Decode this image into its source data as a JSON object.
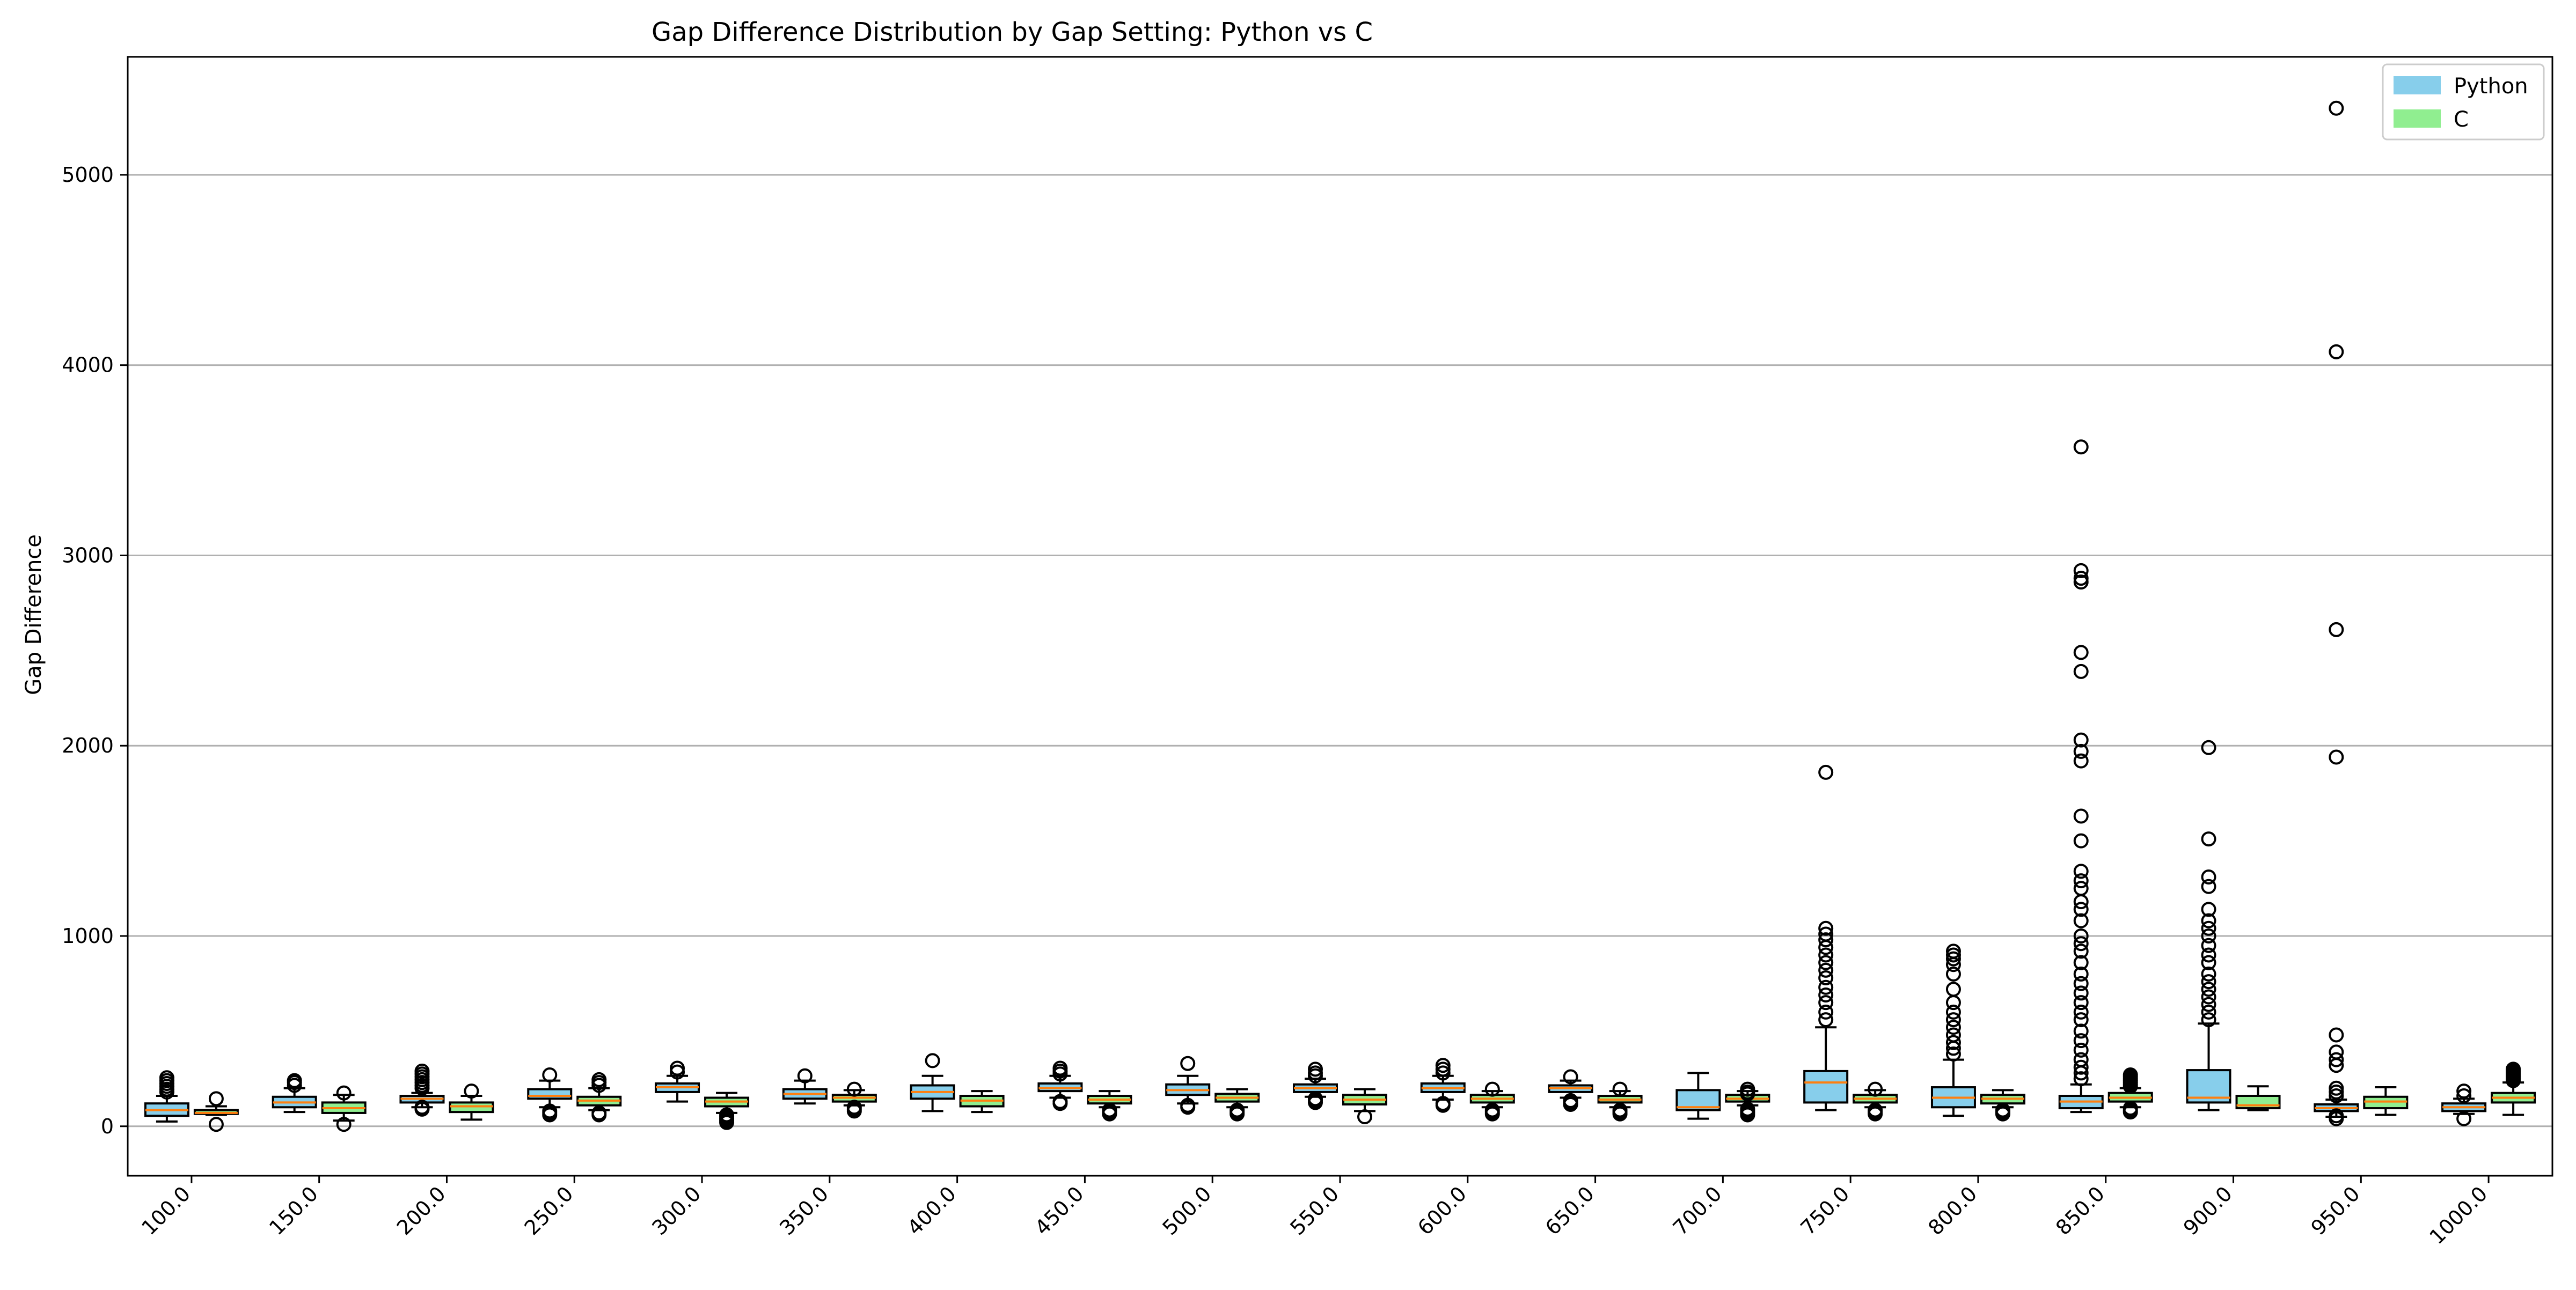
{
  "chart_data": {
    "type": "box",
    "title": "Gap Difference Distribution by Gap Setting: Python vs C",
    "xlabel": "",
    "ylabel": "Gap Difference",
    "ylim": [
      -260,
      5620
    ],
    "yticks": [
      0,
      1000,
      2000,
      3000,
      4000,
      5000
    ],
    "grid": "horizontal",
    "legend_position": "top-right",
    "categories": [
      "100.0",
      "150.0",
      "200.0",
      "250.0",
      "300.0",
      "350.0",
      "400.0",
      "450.0",
      "500.0",
      "550.0",
      "600.0",
      "650.0",
      "700.0",
      "750.0",
      "800.0",
      "850.0",
      "900.0",
      "950.0",
      "1000.0"
    ],
    "series": [
      {
        "name": "Python",
        "color": "#87CEEB",
        "boxes": [
          {
            "whislo": 25,
            "q1": 55,
            "med": 85,
            "q3": 120,
            "whishi": 160,
            "fliers": [
              180,
              195,
              210,
              225,
              240,
              255
            ]
          },
          {
            "whislo": 75,
            "q1": 100,
            "med": 125,
            "q3": 155,
            "whishi": 200,
            "fliers": [
              215,
              230,
              240
            ]
          },
          {
            "whislo": 100,
            "q1": 125,
            "med": 145,
            "q3": 160,
            "whishi": 175,
            "fliers": [
              90,
              100,
              200,
              215,
              230,
              245,
              260,
              275,
              290
            ]
          },
          {
            "whislo": 100,
            "q1": 145,
            "med": 160,
            "q3": 195,
            "whishi": 240,
            "fliers": [
              60,
              70,
              80,
              270
            ]
          },
          {
            "whislo": 130,
            "q1": 180,
            "med": 205,
            "q3": 225,
            "whishi": 265,
            "fliers": [
              285,
              305
            ]
          },
          {
            "whislo": 120,
            "q1": 145,
            "med": 170,
            "q3": 195,
            "whishi": 240,
            "fliers": [
              265
            ]
          },
          {
            "whislo": 80,
            "q1": 145,
            "med": 180,
            "q3": 215,
            "whishi": 265,
            "fliers": [
              345
            ]
          },
          {
            "whislo": 150,
            "q1": 185,
            "med": 200,
            "q3": 225,
            "whishi": 265,
            "fliers": [
              120,
              130,
              275,
              290,
              305
            ]
          },
          {
            "whislo": 120,
            "q1": 165,
            "med": 190,
            "q3": 220,
            "whishi": 265,
            "fliers": [
              100,
              110,
              330
            ]
          },
          {
            "whislo": 155,
            "q1": 180,
            "med": 200,
            "q3": 220,
            "whishi": 250,
            "fliers": [
              125,
              135,
              145,
              265,
              280,
              300
            ]
          },
          {
            "whislo": 140,
            "q1": 180,
            "med": 200,
            "q3": 225,
            "whishi": 265,
            "fliers": [
              110,
              120,
              280,
              300,
              320
            ]
          },
          {
            "whislo": 150,
            "q1": 180,
            "med": 200,
            "q3": 215,
            "whishi": 240,
            "fliers": [
              115,
              125,
              135,
              260
            ]
          },
          {
            "whislo": 40,
            "q1": 85,
            "med": 100,
            "q3": 190,
            "whishi": 280,
            "fliers": []
          },
          {
            "whislo": 85,
            "q1": 125,
            "med": 230,
            "q3": 290,
            "whishi": 520,
            "fliers": [
              560,
              600,
              650,
              690,
              730,
              780,
              820,
              860,
              900,
              940,
              980,
              1010,
              1040,
              1860
            ]
          },
          {
            "whislo": 55,
            "q1": 100,
            "med": 150,
            "q3": 205,
            "whishi": 350,
            "fliers": [
              380,
              410,
              440,
              480,
              520,
              560,
              600,
              650,
              720,
              800,
              850,
              880,
              900,
              920
            ]
          },
          {
            "whislo": 75,
            "q1": 95,
            "med": 130,
            "q3": 160,
            "whishi": 220,
            "fliers": [
              250,
              280,
              310,
              350,
              400,
              450,
              500,
              560,
              600,
              650,
              700,
              750,
              800,
              860,
              920,
              960,
              1000,
              1080,
              1140,
              1180,
              1250,
              1290,
              1340,
              1500,
              1630,
              1920,
              1970,
              2030,
              2390,
              2490,
              2860,
              2880,
              2920,
              3570
            ]
          },
          {
            "whislo": 85,
            "q1": 125,
            "med": 150,
            "q3": 295,
            "whishi": 540,
            "fliers": [
              560,
              600,
              640,
              680,
              720,
              760,
              800,
              860,
              900,
              950,
              1000,
              1040,
              1080,
              1140,
              1260,
              1310,
              1510,
              1990
            ]
          },
          {
            "whislo": 50,
            "q1": 80,
            "med": 95,
            "q3": 115,
            "whishi": 140,
            "fliers": [
              40,
              55,
              160,
              180,
              200,
              320,
              350,
              390,
              480,
              1940,
              2610,
              4070,
              5350
            ]
          },
          {
            "whislo": 65,
            "q1": 80,
            "med": 100,
            "q3": 120,
            "whishi": 145,
            "fliers": [
              40,
              160,
              185
            ]
          }
        ]
      },
      {
        "name": "C",
        "color": "#90EE90",
        "boxes": [
          {
            "whislo": 60,
            "q1": 65,
            "med": 70,
            "q3": 85,
            "whishi": 105,
            "fliers": [
              10,
              145
            ]
          },
          {
            "whislo": 30,
            "q1": 70,
            "med": 95,
            "q3": 125,
            "whishi": 165,
            "fliers": [
              10,
              175
            ]
          },
          {
            "whislo": 35,
            "q1": 75,
            "med": 105,
            "q3": 125,
            "whishi": 160,
            "fliers": [
              185
            ]
          },
          {
            "whislo": 85,
            "q1": 110,
            "med": 135,
            "q3": 155,
            "whishi": 200,
            "fliers": [
              60,
              70,
              215,
              230,
              245
            ]
          },
          {
            "whislo": 70,
            "q1": 105,
            "med": 130,
            "q3": 150,
            "whishi": 175,
            "fliers": [
              20,
              30,
              40,
              50,
              60
            ]
          },
          {
            "whislo": 110,
            "q1": 130,
            "med": 150,
            "q3": 165,
            "whishi": 190,
            "fliers": [
              80,
              90,
              100,
              195
            ]
          },
          {
            "whislo": 75,
            "q1": 105,
            "med": 135,
            "q3": 160,
            "whishi": 185,
            "fliers": []
          },
          {
            "whislo": 100,
            "q1": 120,
            "med": 140,
            "q3": 160,
            "whishi": 185,
            "fliers": [
              65,
              75,
              85
            ]
          },
          {
            "whislo": 100,
            "q1": 130,
            "med": 150,
            "q3": 170,
            "whishi": 195,
            "fliers": [
              65,
              75,
              85
            ]
          },
          {
            "whislo": 80,
            "q1": 115,
            "med": 140,
            "q3": 165,
            "whishi": 195,
            "fliers": [
              50
            ]
          },
          {
            "whislo": 100,
            "q1": 125,
            "med": 145,
            "q3": 165,
            "whishi": 185,
            "fliers": [
              65,
              75,
              85,
              195
            ]
          },
          {
            "whislo": 100,
            "q1": 125,
            "med": 140,
            "q3": 160,
            "whishi": 185,
            "fliers": [
              65,
              75,
              85,
              195
            ]
          },
          {
            "whislo": 110,
            "q1": 130,
            "med": 145,
            "q3": 165,
            "whishi": 185,
            "fliers": [
              60,
              70,
              80,
              90,
              170,
              180,
              195
            ]
          },
          {
            "whislo": 100,
            "q1": 125,
            "med": 145,
            "q3": 165,
            "whishi": 190,
            "fliers": [
              65,
              75,
              85,
              195
            ]
          },
          {
            "whislo": 100,
            "q1": 120,
            "med": 145,
            "q3": 165,
            "whishi": 190,
            "fliers": [
              65,
              75,
              85
            ]
          },
          {
            "whislo": 100,
            "q1": 130,
            "med": 150,
            "q3": 175,
            "whishi": 200,
            "fliers": [
              75,
              85,
              95,
              210,
              220,
              230,
              240,
              250,
              260,
              270
            ]
          },
          {
            "whislo": 85,
            "q1": 95,
            "med": 110,
            "q3": 160,
            "whishi": 210,
            "fliers": []
          },
          {
            "whislo": 60,
            "q1": 95,
            "med": 130,
            "q3": 155,
            "whishi": 205,
            "fliers": []
          },
          {
            "whislo": 60,
            "q1": 125,
            "med": 150,
            "q3": 175,
            "whishi": 230,
            "fliers": [
              240,
              250,
              260,
              270,
              280,
              290,
              300
            ]
          }
        ]
      }
    ]
  }
}
